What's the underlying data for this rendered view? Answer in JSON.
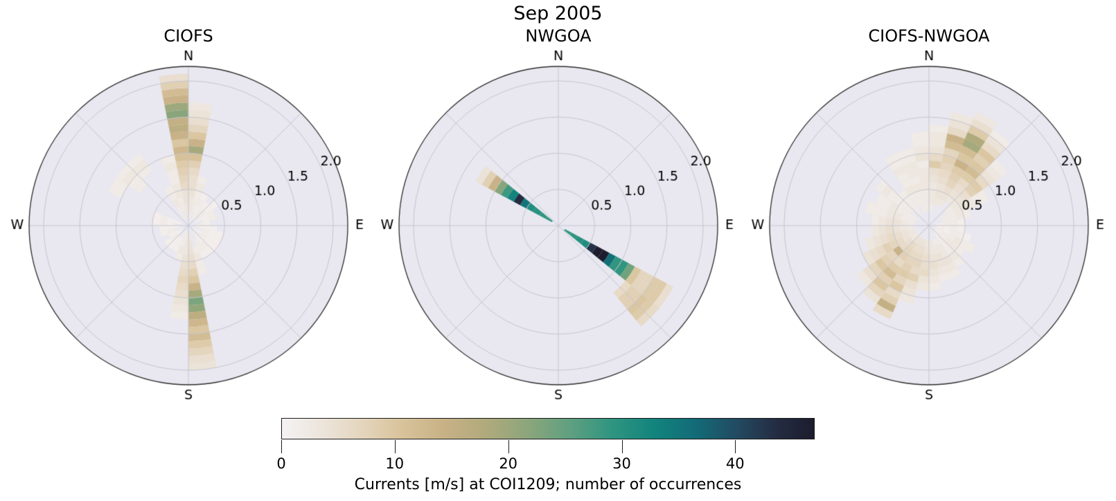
{
  "chart_data": {
    "type": "heatmap",
    "subtype": "polar-rose-histogram",
    "title": "Sep 2005",
    "compass_labels": {
      "north": "N",
      "east": "E",
      "south": "S",
      "west": "W"
    },
    "radial_ticks": [
      {
        "value": 0.5,
        "label": "0.5"
      },
      {
        "value": 1.0,
        "label": "1.0"
      },
      {
        "value": 1.5,
        "label": "1.5"
      },
      {
        "value": 2.0,
        "label": "2.0"
      }
    ],
    "r_max": 2.2,
    "bin_width_deg": 11.25,
    "r_bin_size": 0.1,
    "axes_background": "#e9e8f0",
    "grid_color": "#c6c5cd",
    "spine_color": "#2b2b2b",
    "colorbar": {
      "label": "Currents [m/s] at COI1209; number of occurrences",
      "vmin": 0,
      "vmax": 47,
      "ticks": [
        {
          "value": 0,
          "label": "0"
        },
        {
          "value": 10,
          "label": "10"
        },
        {
          "value": 20,
          "label": "20"
        },
        {
          "value": 30,
          "label": "30"
        },
        {
          "value": 40,
          "label": "40"
        }
      ],
      "stops": [
        {
          "pos": 0.0,
          "color": "#f5f2f3"
        },
        {
          "pos": 0.08,
          "color": "#ece4da"
        },
        {
          "pos": 0.16,
          "color": "#e3d3b9"
        },
        {
          "pos": 0.22,
          "color": "#d9c49d"
        },
        {
          "pos": 0.3,
          "color": "#c9b286"
        },
        {
          "pos": 0.38,
          "color": "#b1aa7d"
        },
        {
          "pos": 0.46,
          "color": "#8da67b"
        },
        {
          "pos": 0.54,
          "color": "#60a080"
        },
        {
          "pos": 0.62,
          "color": "#2f9580"
        },
        {
          "pos": 0.7,
          "color": "#12847d"
        },
        {
          "pos": 0.78,
          "color": "#136a77"
        },
        {
          "pos": 0.86,
          "color": "#23485f"
        },
        {
          "pos": 0.93,
          "color": "#242c42"
        },
        {
          "pos": 1.0,
          "color": "#1c1c2e"
        }
      ]
    },
    "plots": [
      {
        "title": "CIOFS",
        "columns": [
          {
            "dir": 354.4,
            "r0": 0.1,
            "v": [
              3,
              3,
              4,
              4,
              6,
              7,
              8,
              9,
              11,
              13,
              10,
              14,
              16,
              15,
              22,
              20,
              14,
              12,
              8,
              5
            ]
          },
          {
            "dir": 5.6,
            "r0": 0.1,
            "v": [
              2,
              3,
              3,
              4,
              5,
              5,
              6,
              8,
              11,
              19,
              14,
              10,
              7,
              5,
              4,
              3
            ]
          },
          {
            "dir": 343.1,
            "r0": 0.2,
            "v": [
              2,
              2,
              3,
              3,
              2,
              2,
              3,
              2
            ]
          },
          {
            "dir": 16.9,
            "r0": 0.2,
            "v": [
              2,
              2,
              2,
              3,
              2
            ]
          },
          {
            "dir": 331.9,
            "r0": 0.1,
            "v": [
              2,
              2,
              3,
              2,
              2
            ]
          },
          {
            "dir": 320.6,
            "r0": 0.9,
            "v": [
              2,
              3,
              2
            ]
          },
          {
            "dir": 309.4,
            "r0": 0.8,
            "v": [
              2,
              2,
              3,
              2
            ]
          },
          {
            "dir": 298.1,
            "r0": 1.0,
            "v": [
              2,
              2
            ]
          },
          {
            "dir": 286.9,
            "r0": 0.1,
            "v": [
              1,
              1,
              2,
              1
            ]
          },
          {
            "dir": 275.6,
            "r0": 0.2,
            "v": [
              1,
              2,
              1
            ]
          },
          {
            "dir": 264.4,
            "r0": 0.1,
            "v": [
              1,
              1,
              1
            ]
          },
          {
            "dir": 253.1,
            "r0": 0.2,
            "v": [
              2,
              1
            ]
          },
          {
            "dir": 241.9,
            "r0": 0.1,
            "v": [
              1,
              1
            ]
          },
          {
            "dir": 230.6,
            "r0": 0.1,
            "v": [
              1,
              2,
              1
            ]
          },
          {
            "dir": 219.4,
            "r0": 0.2,
            "v": [
              1,
              1
            ]
          },
          {
            "dir": 208.1,
            "r0": 0.1,
            "v": [
              2,
              1,
              1
            ]
          },
          {
            "dir": 196.9,
            "r0": 0.1,
            "v": [
              2,
              2,
              3,
              2
            ]
          },
          {
            "dir": 185.6,
            "r0": 0.1,
            "v": [
              2,
              3,
              3,
              4,
              5,
              6,
              7,
              6,
              5,
              4,
              3,
              2
            ]
          },
          {
            "dir": 174.4,
            "r0": 0.1,
            "v": [
              3,
              4,
              4,
              5,
              6,
              8,
              10,
              14,
              19,
              23,
              21,
              16,
              13,
              10,
              12,
              9,
              7,
              5,
              4
            ]
          },
          {
            "dir": 163.1,
            "r0": 0.3,
            "v": [
              2,
              3,
              2,
              2
            ]
          },
          {
            "dir": 151.9,
            "r0": 0.2,
            "v": [
              2,
              2,
              1
            ]
          },
          {
            "dir": 140.6,
            "r0": 0.1,
            "v": [
              1,
              1,
              2,
              1
            ]
          },
          {
            "dir": 129.4,
            "r0": 0.2,
            "v": [
              2,
              1,
              1
            ]
          },
          {
            "dir": 118.1,
            "r0": 0.1,
            "v": [
              1,
              2,
              1,
              1
            ]
          },
          {
            "dir": 106.9,
            "r0": 0.2,
            "v": [
              2,
              1,
              1
            ]
          },
          {
            "dir": 95.6,
            "r0": 0.1,
            "v": [
              1,
              1,
              1
            ]
          },
          {
            "dir": 84.4,
            "r0": 0.1,
            "v": [
              2,
              1
            ]
          },
          {
            "dir": 73.1,
            "r0": 0.2,
            "v": [
              1,
              2
            ]
          },
          {
            "dir": 61.9,
            "r0": 0.1,
            "v": [
              1,
              1,
              2
            ]
          },
          {
            "dir": 50.6,
            "r0": 0.2,
            "v": [
              2,
              1,
              1
            ]
          },
          {
            "dir": 39.4,
            "r0": 0.1,
            "v": [
              1,
              2,
              1
            ]
          },
          {
            "dir": 28.1,
            "r0": 0.1,
            "v": [
              2,
              1,
              2,
              1
            ]
          }
        ]
      },
      {
        "title": "NWGOA",
        "columns": [
          {
            "dir": 303.75,
            "r0": 0.1,
            "v": [
              29,
              29,
              30,
              31,
              35,
              44,
              33,
              28,
              22,
              14,
              8,
              4
            ]
          },
          {
            "dir": 123.75,
            "r0": 0.1,
            "v": [
              29,
              29,
              30,
              31,
              43,
              47,
              47,
              36,
              29,
              29,
              24,
              10,
              7,
              7,
              9,
              9,
              5
            ]
          },
          {
            "dir": 135.0,
            "r0": 1.2,
            "v": [
              6,
              8,
              8,
              10,
              9,
              6
            ]
          }
        ]
      },
      {
        "title": "CIOFS-NWGOA",
        "columns": [
          {
            "dir": 354.4,
            "r0": 0.2,
            "v": [
              2,
              2,
              2,
              3,
              3,
              3,
              2,
              4,
              3,
              2,
              2
            ]
          },
          {
            "dir": 5.6,
            "r0": 0.2,
            "v": [
              2,
              3,
              3,
              3,
              4,
              5,
              9,
              6,
              4,
              3,
              3,
              2
            ]
          },
          {
            "dir": 16.9,
            "r0": 0.3,
            "v": [
              3,
              4,
              4,
              5,
              6,
              7,
              8,
              7,
              12,
              14,
              6,
              4,
              3
            ]
          },
          {
            "dir": 28.1,
            "r0": 0.3,
            "v": [
              3,
              4,
              5,
              7,
              8,
              9,
              14,
              10,
              12,
              19,
              18,
              9,
              5,
              3
            ]
          },
          {
            "dir": 39.4,
            "r0": 0.4,
            "v": [
              3,
              4,
              5,
              6,
              9,
              12,
              10,
              8,
              10,
              6,
              4,
              2
            ]
          },
          {
            "dir": 50.6,
            "r0": 0.3,
            "v": [
              2,
              3,
              4,
              5,
              8,
              9,
              6,
              4,
              3,
              2
            ]
          },
          {
            "dir": 61.9,
            "r0": 0.2,
            "v": [
              2,
              2,
              3,
              4,
              3,
              2,
              2
            ]
          },
          {
            "dir": 73.1,
            "r0": 0.2,
            "v": [
              2,
              2,
              3,
              2
            ]
          },
          {
            "dir": 84.4,
            "r0": 0.1,
            "v": [
              1,
              2,
              2,
              1
            ]
          },
          {
            "dir": 95.6,
            "r0": 0.1,
            "v": [
              1,
              1,
              2,
              1
            ]
          },
          {
            "dir": 106.9,
            "r0": 0.1,
            "v": [
              2,
              1,
              2,
              2,
              1
            ]
          },
          {
            "dir": 118.1,
            "r0": 0.1,
            "v": [
              1,
              2,
              2,
              3,
              2,
              2
            ]
          },
          {
            "dir": 129.4,
            "r0": 0.1,
            "v": [
              2,
              2,
              3,
              3,
              2
            ]
          },
          {
            "dir": 140.6,
            "r0": 0.1,
            "v": [
              1,
              2,
              2,
              2,
              3,
              2
            ]
          },
          {
            "dir": 151.9,
            "r0": 0.2,
            "v": [
              2,
              3,
              3,
              4,
              3,
              2
            ]
          },
          {
            "dir": 163.1,
            "r0": 0.2,
            "v": [
              2,
              3,
              4,
              4,
              3,
              2
            ]
          },
          {
            "dir": 174.4,
            "r0": 0.2,
            "v": [
              3,
              3,
              4,
              5,
              4,
              3,
              2
            ]
          },
          {
            "dir": 185.6,
            "r0": 0.2,
            "v": [
              3,
              4,
              5,
              5,
              6,
              4,
              3
            ]
          },
          {
            "dir": 196.9,
            "r0": 0.2,
            "v": [
              4,
              5,
              6,
              7,
              6,
              8,
              5,
              4,
              3
            ]
          },
          {
            "dir": 208.1,
            "r0": 0.2,
            "v": [
              4,
              5,
              6,
              7,
              8,
              9,
              7,
              10,
              6,
              8,
              15,
              6
            ]
          },
          {
            "dir": 219.4,
            "r0": 0.2,
            "v": [
              4,
              6,
              7,
              8,
              6,
              9,
              12,
              8,
              10,
              7,
              4
            ]
          },
          {
            "dir": 230.6,
            "r0": 0.2,
            "v": [
              3,
              5,
              6,
              14,
              7,
              8,
              10,
              7,
              5,
              3
            ]
          },
          {
            "dir": 241.9,
            "r0": 0.2,
            "v": [
              3,
              4,
              6,
              7,
              8,
              6,
              5,
              4
            ]
          },
          {
            "dir": 253.1,
            "r0": 0.2,
            "v": [
              3,
              4,
              5,
              6,
              5,
              4,
              3
            ]
          },
          {
            "dir": 264.4,
            "r0": 0.2,
            "v": [
              2,
              3,
              4,
              5,
              4,
              3
            ]
          },
          {
            "dir": 275.6,
            "r0": 0.2,
            "v": [
              2,
              3,
              4,
              4,
              3,
              2
            ]
          },
          {
            "dir": 286.9,
            "r0": 0.2,
            "v": [
              2,
              2,
              3,
              3,
              2,
              2,
              2
            ]
          },
          {
            "dir": 298.1,
            "r0": 0.2,
            "v": [
              2,
              2,
              2,
              3,
              2,
              2
            ]
          },
          {
            "dir": 309.4,
            "r0": 0.3,
            "v": [
              2,
              2,
              2,
              2,
              3,
              2
            ]
          },
          {
            "dir": 320.6,
            "r0": 0.2,
            "v": [
              2,
              2,
              2,
              2
            ]
          },
          {
            "dir": 331.9,
            "r0": 0.3,
            "v": [
              2,
              2,
              3,
              2,
              2,
              3,
              2,
              2
            ]
          },
          {
            "dir": 343.1,
            "r0": 0.2,
            "v": [
              2,
              2,
              2,
              3,
              2,
              3,
              3,
              2,
              2
            ]
          }
        ]
      }
    ]
  }
}
